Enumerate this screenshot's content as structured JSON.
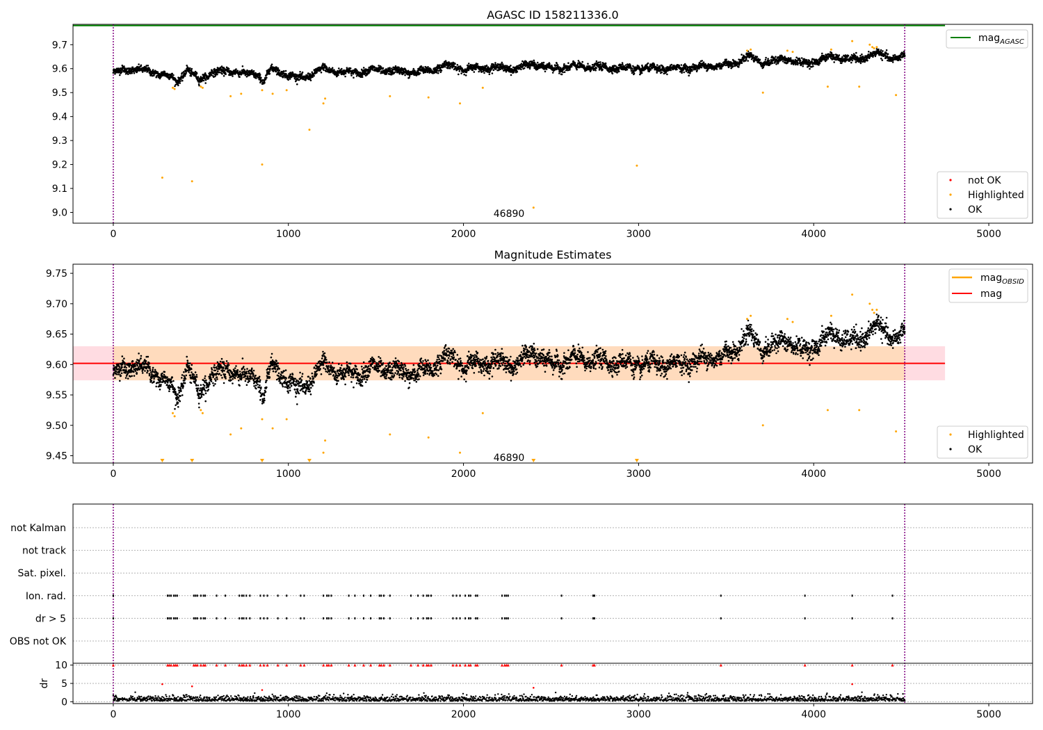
{
  "colors": {
    "ok": "#000000",
    "highlighted": "#ffa500",
    "not_ok": "#ff0000",
    "mag_agasc_line": "#008000",
    "mag_obsid_line": "#ffa500",
    "mag_line": "#ff0000",
    "band_outer": "#ffc0cb",
    "band_inner": "#ffdab9",
    "obs_boundary": "#800080",
    "grid": "#b0b0b0"
  },
  "chart_data": [
    {
      "type": "scatter",
      "title": "AGASC ID 158211336.0",
      "xlim": [
        -230,
        5250
      ],
      "ylim": [
        8.955,
        9.785
      ],
      "x_ticks": [
        0,
        1000,
        2000,
        3000,
        4000,
        5000
      ],
      "x_tick_labels": [
        "0",
        "1000",
        "2000",
        "3000",
        "4000",
        "5000"
      ],
      "y_ticks": [
        9.0,
        9.1,
        9.2,
        9.3,
        9.4,
        9.5,
        9.6,
        9.7
      ],
      "y_tick_labels": [
        "9.0",
        "9.1",
        "9.2",
        "9.3",
        "9.4",
        "9.5",
        "9.6",
        "9.7"
      ],
      "obs_boundaries_x": [
        0,
        4520
      ],
      "annotation": {
        "text": "46890",
        "x": 2260,
        "y": 8.995
      },
      "mag_agasc": 9.78,
      "mag_agasc_x_range": [
        -230,
        4750
      ],
      "legend_lines": [
        {
          "label": "mag",
          "subscript": "AGASC"
        }
      ],
      "legend_lines_placement": "top-right",
      "legend_points": [
        "not OK",
        "Highlighted",
        "OK"
      ],
      "legend_points_placement": "bottom-right",
      "ok_series": {
        "x_range": [
          0,
          4520
        ],
        "n": 4500,
        "trend": [
          [
            0,
            9.585
          ],
          [
            1000,
            9.575
          ],
          [
            2000,
            9.598
          ],
          [
            3000,
            9.605
          ],
          [
            4000,
            9.625
          ],
          [
            4520,
            9.65
          ]
        ],
        "segments": [
          [
            0,
            9.585
          ],
          [
            120,
            9.6
          ],
          [
            300,
            9.575
          ],
          [
            370,
            9.545
          ],
          [
            420,
            9.6
          ],
          [
            490,
            9.55
          ],
          [
            560,
            9.585
          ],
          [
            700,
            9.59
          ],
          [
            760,
            9.575
          ],
          [
            820,
            9.58
          ],
          [
            860,
            9.545
          ],
          [
            900,
            9.6
          ],
          [
            1000,
            9.575
          ],
          [
            1050,
            9.56
          ],
          [
            1100,
            9.565
          ],
          [
            1200,
            9.6
          ],
          [
            1300,
            9.585
          ],
          [
            1400,
            9.585
          ],
          [
            1500,
            9.595
          ],
          [
            1600,
            9.59
          ],
          [
            1700,
            9.585
          ],
          [
            1800,
            9.59
          ],
          [
            1900,
            9.615
          ],
          [
            2000,
            9.598
          ],
          [
            2150,
            9.605
          ],
          [
            2300,
            9.6
          ],
          [
            2400,
            9.62
          ],
          [
            2500,
            9.6
          ],
          [
            2650,
            9.61
          ],
          [
            2800,
            9.605
          ],
          [
            3000,
            9.6
          ],
          [
            3200,
            9.6
          ],
          [
            3400,
            9.61
          ],
          [
            3550,
            9.62
          ],
          [
            3620,
            9.655
          ],
          [
            3700,
            9.625
          ],
          [
            3850,
            9.64
          ],
          [
            3950,
            9.62
          ],
          [
            4100,
            9.65
          ],
          [
            4250,
            9.635
          ],
          [
            4350,
            9.665
          ],
          [
            4450,
            9.645
          ],
          [
            4520,
            9.65
          ]
        ],
        "scatter_sd": 0.011
      },
      "highlighted_points": [
        [
          280,
          9.145
        ],
        [
          450,
          9.13
        ],
        [
          850,
          9.2
        ],
        [
          1120,
          9.345
        ],
        [
          2400,
          9.02
        ],
        [
          2990,
          9.195
        ],
        [
          340,
          9.52
        ],
        [
          350,
          9.515
        ],
        [
          500,
          9.525
        ],
        [
          510,
          9.52
        ],
        [
          670,
          9.485
        ],
        [
          730,
          9.495
        ],
        [
          850,
          9.51
        ],
        [
          910,
          9.495
        ],
        [
          990,
          9.51
        ],
        [
          1200,
          9.455
        ],
        [
          1210,
          9.475
        ],
        [
          1580,
          9.485
        ],
        [
          1800,
          9.48
        ],
        [
          1980,
          9.455
        ],
        [
          2110,
          9.52
        ],
        [
          3710,
          9.5
        ],
        [
          4080,
          9.525
        ],
        [
          4260,
          9.525
        ],
        [
          4470,
          9.49
        ],
        [
          4220,
          9.715
        ],
        [
          4320,
          9.7
        ],
        [
          4335,
          9.69
        ],
        [
          4345,
          9.685
        ],
        [
          4360,
          9.69
        ],
        [
          3640,
          9.68
        ],
        [
          3620,
          9.675
        ],
        [
          3850,
          9.675
        ],
        [
          4100,
          9.68
        ],
        [
          3880,
          9.67
        ]
      ]
    },
    {
      "type": "scatter",
      "title": "Magnitude Estimates",
      "xlim": [
        -230,
        5250
      ],
      "ylim": [
        9.438,
        9.765
      ],
      "x_ticks": [
        0,
        1000,
        2000,
        3000,
        4000,
        5000
      ],
      "x_tick_labels": [
        "0",
        "1000",
        "2000",
        "3000",
        "4000",
        "5000"
      ],
      "y_ticks": [
        9.45,
        9.5,
        9.55,
        9.6,
        9.65,
        9.7,
        9.75
      ],
      "y_tick_labels": [
        "9.45",
        "9.50",
        "9.55",
        "9.60",
        "9.65",
        "9.70",
        "9.75"
      ],
      "obs_boundaries_x": [
        0,
        4520
      ],
      "annotation": {
        "text": "46890",
        "x": 2260,
        "y": 9.447
      },
      "mag": 9.602,
      "mag_band_outer": [
        9.574,
        9.63
      ],
      "mag_band_inner_x_range": [
        0,
        4520
      ],
      "mag_x_range": [
        -230,
        4750
      ],
      "legend_lines": [
        {
          "label": "mag",
          "subscript": "OBSID"
        },
        {
          "label": "mag",
          "subscript": ""
        }
      ],
      "legend_lines_placement": "top-right",
      "legend_points": [
        "Highlighted",
        "OK"
      ],
      "legend_points_placement": "bottom-right",
      "lower_limit_markers_x": [
        280,
        450,
        850,
        1120,
        2400,
        2990
      ]
    },
    {
      "type": "scatter",
      "title": "",
      "xlim": [
        -230,
        5250
      ],
      "x_ticks": [
        0,
        1000,
        2000,
        3000,
        4000,
        5000
      ],
      "x_tick_labels": [
        "0",
        "1000",
        "2000",
        "3000",
        "4000",
        "5000"
      ],
      "flag_rows": [
        "not Kalman",
        "not track",
        "Sat. pixel.",
        "Ion. rad.",
        "dr > 5",
        "OBS not OK"
      ],
      "flagged_x": [
        0,
        310,
        320,
        330,
        345,
        355,
        365,
        460,
        470,
        480,
        500,
        515,
        525,
        590,
        640,
        720,
        735,
        745,
        760,
        780,
        840,
        860,
        880,
        940,
        990,
        1070,
        1090,
        1200,
        1220,
        1230,
        1245,
        1345,
        1380,
        1430,
        1470,
        1520,
        1530,
        1545,
        1580,
        1700,
        1740,
        1770,
        1790,
        1800,
        1815,
        1940,
        1960,
        1980,
        2010,
        2030,
        2040,
        2070,
        2080,
        2220,
        2235,
        2245,
        2255,
        2560,
        2740,
        2748,
        3470,
        3950,
        4220,
        4450
      ],
      "dr_ylim": [
        -0.5,
        10.5
      ],
      "dr_y_ticks": [
        0,
        5,
        10
      ],
      "dr_y_tick_labels": [
        "0",
        "5",
        "10"
      ],
      "dr_ylabel": "dr",
      "dr_cap": 10,
      "dr_outliers": [
        [
          280,
          4.8
        ],
        [
          450,
          4.2
        ],
        [
          850,
          3.2
        ],
        [
          2400,
          3.8
        ],
        [
          4220,
          4.8
        ]
      ]
    }
  ]
}
